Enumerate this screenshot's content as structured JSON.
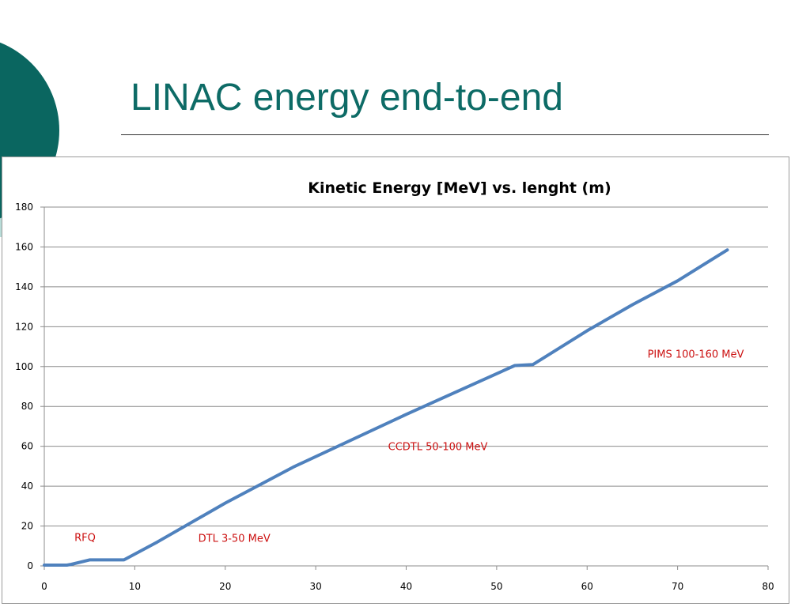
{
  "slide": {
    "title": "LINAC energy end-to-end"
  },
  "colors": {
    "title": "#0d6b66",
    "deco_dark": "#0a6660",
    "deco_light": "#b8dcd8",
    "series": "#4f81bd",
    "annotation": "#cc1111"
  },
  "chart_data": {
    "type": "line",
    "title": "Kinetic Energy [MeV] vs. lenght (m)",
    "xlabel": "",
    "ylabel": "",
    "xlim": [
      0,
      80
    ],
    "ylim": [
      0,
      180
    ],
    "x_ticks": [
      0,
      10,
      20,
      30,
      40,
      50,
      60,
      70,
      80
    ],
    "y_ticks": [
      0,
      20,
      40,
      60,
      80,
      100,
      120,
      140,
      160,
      180
    ],
    "grid": "horizontal",
    "legend": "none",
    "series": [
      {
        "x": [
          0,
          2.5,
          3.0,
          5.0,
          8.8,
          12.5,
          20.0,
          27.5,
          40.0,
          52.0,
          54.0,
          60.0,
          65.0,
          70.0,
          75.5
        ],
        "values": [
          0.4,
          0.4,
          0.8,
          3.0,
          3.0,
          12.0,
          31.5,
          49.5,
          76.0,
          100.5,
          101.0,
          118.0,
          131.0,
          143.0,
          158.5
        ]
      }
    ],
    "annotations": [
      {
        "text": "RFQ",
        "x": 4.5,
        "y": 12.5
      },
      {
        "text": "DTL 3-50 MeV",
        "x": 21.0,
        "y": 12.0
      },
      {
        "text": "CCDTL 50-100 MeV",
        "x": 43.5,
        "y": 58.0
      },
      {
        "text": "PIMS 100-160 MeV",
        "x": 72.0,
        "y": 104.5
      }
    ]
  }
}
